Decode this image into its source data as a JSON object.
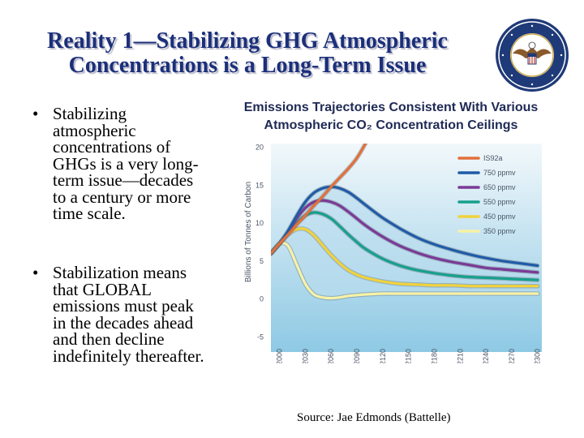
{
  "slide": {
    "title_lines": [
      "Reality 1—Stabilizing GHG Atmospheric",
      "Concentrations is a Long-Term Issue"
    ],
    "bullets": [
      {
        "symbol": "•",
        "lines": [
          "Stabilizing",
          "atmospheric",
          "concentrations of",
          "GHGs  is a very long-",
          "term issue—decades",
          "to a century or more",
          "time scale."
        ]
      },
      {
        "symbol": "•",
        "lines": [
          "Stabilization means",
          "that GLOBAL",
          "emissions must peak",
          "in the decades ahead",
          "and then decline",
          "indefinitely thereafter."
        ]
      }
    ],
    "source": "Source:  Jae Edmonds (Battelle)"
  },
  "colors": {
    "title": "#1b2f7a",
    "chart_title": "#1f2a55",
    "plot_top": "#f2f8fb",
    "plot_bottom": "#8ec9e4",
    "axis_text": "#4a5566"
  },
  "chart_data": {
    "type": "line",
    "title_lines": [
      "Emissions Trajectories Consistent With Various",
      "Atmospheric CO₂ Concentration Ceilings"
    ],
    "xlabel": "",
    "ylabel": "Billions of Tonnes of Carbon",
    "x_ticks": [
      2000,
      2030,
      2060,
      2090,
      2120,
      2150,
      2180,
      2210,
      2240,
      2270,
      2300
    ],
    "y_ticks": [
      20,
      15,
      10,
      5,
      0,
      -5
    ],
    "xlim": [
      1990,
      2305
    ],
    "ylim": [
      -7,
      20.5
    ],
    "grid": false,
    "legend_position": "top-right",
    "series": [
      {
        "name": "IS92a",
        "color": "#e2703a",
        "x": [
          1990,
          2000,
          2010,
          2020,
          2030,
          2040,
          2050,
          2060,
          2070,
          2080,
          2090,
          2100
        ],
        "y": [
          6.0,
          7.3,
          8.5,
          9.8,
          11.0,
          12.3,
          13.5,
          14.8,
          16.0,
          17.2,
          18.6,
          20.5
        ]
      },
      {
        "name": "750 ppmv",
        "color": "#1f5ba8",
        "x": [
          1990,
          2000,
          2010,
          2020,
          2030,
          2040,
          2050,
          2060,
          2070,
          2080,
          2090,
          2100,
          2120,
          2140,
          2160,
          2180,
          2200,
          2220,
          2240,
          2260,
          2280,
          2300
        ],
        "y": [
          6.0,
          7.3,
          9.0,
          11.0,
          12.8,
          14.0,
          14.6,
          14.8,
          14.6,
          14.1,
          13.3,
          12.4,
          10.7,
          9.3,
          8.1,
          7.2,
          6.5,
          5.9,
          5.4,
          5.0,
          4.7,
          4.4
        ]
      },
      {
        "name": "650 ppmv",
        "color": "#7b3a96",
        "x": [
          1990,
          2000,
          2010,
          2020,
          2030,
          2040,
          2050,
          2060,
          2070,
          2080,
          2090,
          2100,
          2120,
          2140,
          2160,
          2180,
          2200,
          2220,
          2240,
          2260,
          2280,
          2300
        ],
        "y": [
          6.0,
          7.3,
          8.8,
          10.6,
          12.0,
          12.8,
          13.0,
          12.8,
          12.3,
          11.5,
          10.6,
          9.7,
          8.2,
          7.0,
          6.1,
          5.4,
          4.9,
          4.5,
          4.1,
          3.9,
          3.7,
          3.5
        ]
      },
      {
        "name": "550 ppmv",
        "color": "#17a08c",
        "x": [
          1990,
          2000,
          2010,
          2020,
          2030,
          2040,
          2050,
          2060,
          2070,
          2080,
          2090,
          2100,
          2120,
          2140,
          2160,
          2180,
          2200,
          2220,
          2240,
          2260,
          2280,
          2300
        ],
        "y": [
          6.0,
          7.3,
          8.7,
          10.0,
          11.0,
          11.4,
          11.2,
          10.6,
          9.6,
          8.5,
          7.5,
          6.6,
          5.3,
          4.4,
          3.8,
          3.4,
          3.1,
          2.9,
          2.8,
          2.7,
          2.6,
          2.5
        ]
      },
      {
        "name": "450 ppmv",
        "color": "#f0d23c",
        "x": [
          1990,
          2000,
          2010,
          2020,
          2030,
          2040,
          2050,
          2060,
          2070,
          2080,
          2090,
          2100,
          2120,
          2140,
          2160,
          2180,
          2200,
          2220,
          2240,
          2260,
          2280,
          2300
        ],
        "y": [
          6.0,
          7.3,
          8.5,
          9.2,
          9.2,
          8.4,
          7.1,
          5.8,
          4.7,
          3.8,
          3.2,
          2.8,
          2.3,
          2.0,
          1.9,
          1.8,
          1.8,
          1.7,
          1.7,
          1.7,
          1.7,
          1.7
        ]
      },
      {
        "name": "350 ppmv",
        "color": "#f7f2a6",
        "x": [
          1990,
          2000,
          2010,
          2020,
          2030,
          2040,
          2050,
          2060,
          2070,
          2080,
          2090,
          2100,
          2120,
          2140,
          2160,
          2180,
          2200,
          2220,
          2240,
          2260,
          2280,
          2300
        ],
        "y": [
          6.0,
          7.3,
          7.0,
          4.5,
          2.0,
          0.6,
          0.2,
          0.1,
          0.2,
          0.4,
          0.5,
          0.6,
          0.7,
          0.7,
          0.7,
          0.7,
          0.7,
          0.7,
          0.7,
          0.7,
          0.7,
          0.7
        ]
      }
    ]
  }
}
